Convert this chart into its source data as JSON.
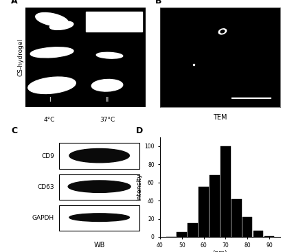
{
  "panel_A": {
    "label": "A",
    "ylabel": "CS-hydrogel",
    "xlabel_left": "4°C",
    "xlabel_right": "37°C",
    "roman_left": "I",
    "roman_right": "II",
    "bg_color": "#000000"
  },
  "panel_B": {
    "label": "B",
    "caption": "TEM",
    "bg_color": "#000000"
  },
  "panel_C": {
    "label": "C",
    "bands": [
      "CD9",
      "CD63",
      "GAPDH"
    ],
    "caption": "WB"
  },
  "panel_D": {
    "label": "D",
    "xlabel": "(nm)",
    "ylabel": "Intensity",
    "xticks": [
      40,
      50,
      60,
      70,
      80,
      90
    ],
    "bar_centers": [
      45,
      50,
      55,
      60,
      65,
      70,
      75,
      80,
      85,
      90
    ],
    "bar_heights": [
      0,
      5,
      15,
      55,
      68,
      100,
      42,
      22,
      7,
      1
    ],
    "bar_color": "#000000",
    "ylim": [
      0,
      110
    ],
    "yticks": [
      0,
      20,
      40,
      60,
      80,
      100
    ]
  },
  "bg_color": "#ffffff",
  "text_color": "#000000"
}
